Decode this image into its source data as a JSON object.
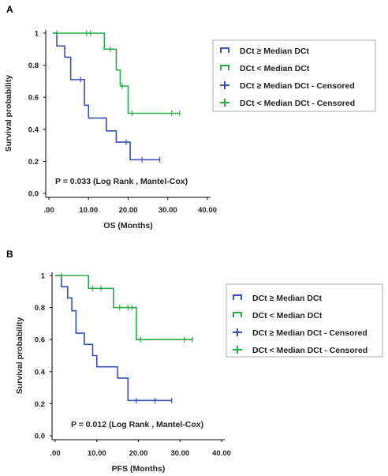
{
  "colors": {
    "high": "#3a4fb0",
    "low": "#2ba84a",
    "axis": "#000000",
    "frame": "#9a9a9a"
  },
  "chart_data": [
    {
      "type": "line",
      "step": true,
      "panel_label": "A",
      "xlabel": "OS (Months)",
      "ylabel": "Survival probability",
      "xlim": [
        0,
        40
      ],
      "ylim": [
        0,
        1
      ],
      "x_ticks": [
        ".00",
        "10.00",
        "20.00",
        "30.00",
        "40.00"
      ],
      "y_ticks": [
        "0.0",
        "0.2",
        "0.4",
        "0.6",
        "0.8",
        "1"
      ],
      "annotation": "P = 0.033 (Log Rank , Mantel-Cox)",
      "legend": [
        "DCt ≥ Median DCt",
        "DCt < Median DCt",
        "DCt ≥ Median DCt - Censored",
        "DCt < Median DCt - Censored"
      ],
      "series": [
        {
          "name": "DCt ≥ Median DCt",
          "color": "#3a4fb0",
          "steps": [
            [
              1,
              1.0
            ],
            [
              2,
              0.92
            ],
            [
              4,
              0.85
            ],
            [
              5.5,
              0.71
            ],
            [
              9,
              0.55
            ],
            [
              10,
              0.47
            ],
            [
              14.5,
              0.39
            ],
            [
              17,
              0.32
            ],
            [
              20.5,
              0.21
            ],
            [
              28,
              0.21
            ]
          ],
          "censored": [
            [
              8,
              0.71
            ],
            [
              19.5,
              0.32
            ],
            [
              23.5,
              0.21
            ],
            [
              28,
              0.21
            ]
          ]
        },
        {
          "name": "DCt < Median DCt",
          "color": "#2ba84a",
          "steps": [
            [
              1,
              1.0
            ],
            [
              14,
              0.9
            ],
            [
              17,
              0.77
            ],
            [
              18,
              0.67
            ],
            [
              20,
              0.5
            ],
            [
              33,
              0.5
            ]
          ],
          "censored": [
            [
              2,
              1.0
            ],
            [
              9.5,
              1.0
            ],
            [
              10.5,
              1.0
            ],
            [
              15.5,
              0.9
            ],
            [
              18.5,
              0.67
            ],
            [
              21,
              0.5
            ],
            [
              31,
              0.5
            ],
            [
              33,
              0.5
            ]
          ]
        }
      ]
    },
    {
      "type": "line",
      "step": true,
      "panel_label": "B",
      "xlabel": "PFS (Months)",
      "ylabel": "Survival probability",
      "xlim": [
        0,
        40
      ],
      "ylim": [
        0,
        1
      ],
      "x_ticks": [
        ".00",
        "10.00",
        "20.00",
        "30.00",
        "40.00"
      ],
      "y_ticks": [
        "0.0",
        "0.2",
        "0.4",
        "0.6",
        "0.8",
        "1"
      ],
      "annotation": "P = 0.012 (Log Rank , Mantel-Cox)",
      "legend": [
        "DCt ≥ Median DCt",
        "DCt < Median DCt",
        "DCt ≥ Median DCt - Censored",
        "DCt < Median DCt - Censored"
      ],
      "series": [
        {
          "name": "DCt ≥ Median DCt",
          "color": "#3a4fb0",
          "steps": [
            [
              0,
              1.0
            ],
            [
              1.5,
              0.93
            ],
            [
              3,
              0.86
            ],
            [
              4,
              0.78
            ],
            [
              5,
              0.64
            ],
            [
              7,
              0.57
            ],
            [
              9,
              0.5
            ],
            [
              10,
              0.43
            ],
            [
              15,
              0.36
            ],
            [
              17.5,
              0.22
            ],
            [
              28,
              0.22
            ]
          ],
          "censored": [
            [
              19.5,
              0.22
            ],
            [
              24,
              0.22
            ],
            [
              28,
              0.22
            ]
          ]
        },
        {
          "name": "DCt < Median DCt",
          "color": "#2ba84a",
          "steps": [
            [
              0,
              1.0
            ],
            [
              8,
              0.92
            ],
            [
              14,
              0.8
            ],
            [
              19.5,
              0.6
            ],
            [
              33,
              0.6
            ]
          ],
          "censored": [
            [
              1.5,
              1.0
            ],
            [
              9,
              0.92
            ],
            [
              11,
              0.92
            ],
            [
              15.5,
              0.8
            ],
            [
              17.5,
              0.8
            ],
            [
              18.5,
              0.8
            ],
            [
              20.5,
              0.6
            ],
            [
              31,
              0.6
            ],
            [
              33,
              0.6
            ]
          ]
        }
      ]
    }
  ]
}
